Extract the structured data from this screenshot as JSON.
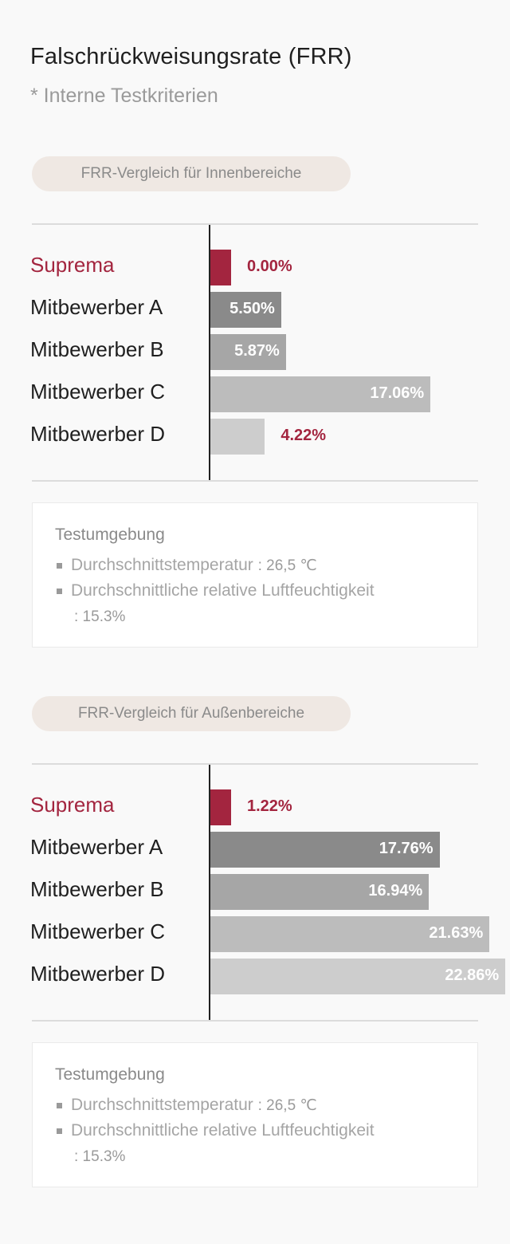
{
  "header": {
    "title": "Falschrückweisungsrate (FRR)",
    "subtitle": "* Interne Testkriterien"
  },
  "colors": {
    "suprema": "#a3253f",
    "competitor_a": "#8a8a8a",
    "competitor_b": "#a6a6a6",
    "competitor_c": "#bcbcbc",
    "competitor_d": "#cdcdcd"
  },
  "chart_data": [
    {
      "type": "bar",
      "orientation": "horizontal",
      "title": "FRR-Vergleich für Innenbereiche",
      "categories": [
        "Suprema",
        "Mitbewerber A",
        "Mitbewerber B",
        "Mitbewerber C",
        "Mitbewerber D"
      ],
      "values": [
        0.0,
        5.5,
        5.87,
        17.06,
        4.22
      ],
      "value_labels": [
        "0.00%",
        "5.50%",
        "5.87%",
        "17.06%",
        "4.22%"
      ],
      "unit": "%",
      "grid": false,
      "legend": "none"
    },
    {
      "type": "bar",
      "orientation": "horizontal",
      "title": "FRR-Vergleich für Außenbereiche",
      "categories": [
        "Suprema",
        "Mitbewerber A",
        "Mitbewerber B",
        "Mitbewerber C",
        "Mitbewerber D"
      ],
      "values": [
        1.22,
        17.76,
        16.94,
        21.63,
        22.86
      ],
      "value_labels": [
        "1.22%",
        "17.76%",
        "16.94%",
        "21.63%",
        "22.86%"
      ],
      "unit": "%",
      "grid": false,
      "legend": "none"
    }
  ],
  "environment": [
    {
      "title": "Testumgebung",
      "temp_label": "Durchschnittstemperatur",
      "temp_value": ": 26,5 ℃",
      "humidity_label": "Durchschnittliche relative Luftfeuchtigkeit",
      "humidity_value": ": 15.3%"
    },
    {
      "title": "Testumgebung",
      "temp_label": "Durchschnittstemperatur",
      "temp_value": ": 26,5 ℃",
      "humidity_label": "Durchschnittliche relative Luftfeuchtigkeit",
      "humidity_value": ": 15.3%"
    }
  ]
}
